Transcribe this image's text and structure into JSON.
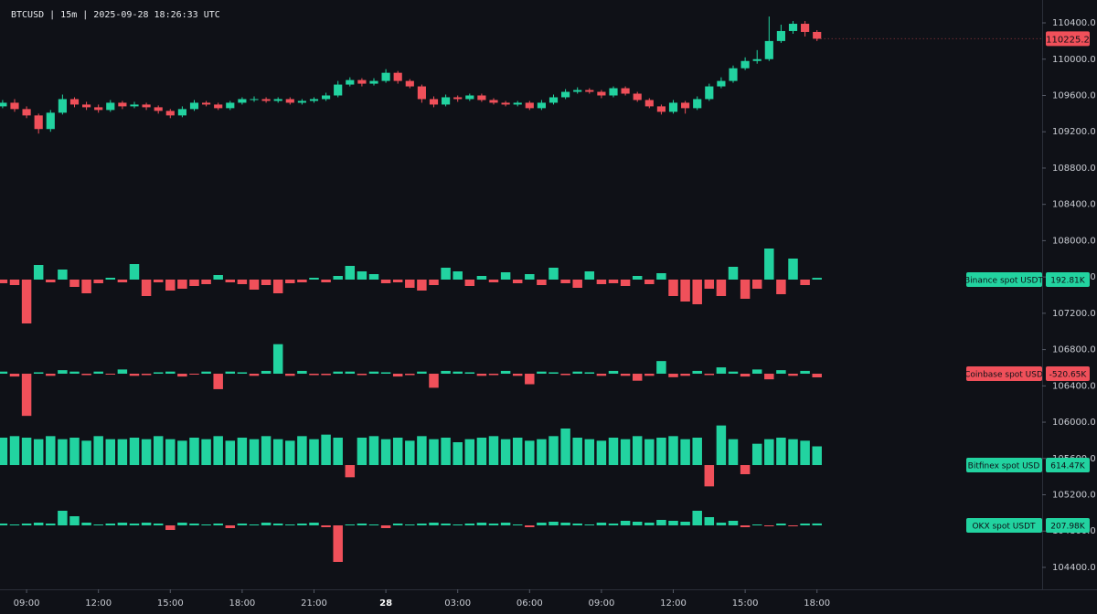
{
  "chart_data": [
    {
      "type": "candlestick",
      "title": "BTCUSD | 15m | 2025-09-28 18:26:33 UTC",
      "up_color": "#22d3a0",
      "down_color": "#f0505a",
      "x": [
        8,
        8.5,
        9,
        9.5,
        10,
        10.5,
        11,
        11.5,
        12,
        12.5,
        13,
        13.5,
        14,
        14.5,
        15,
        15.5,
        16,
        16.5,
        17,
        17.5,
        18,
        18.5,
        19,
        19.5,
        20,
        20.5,
        21,
        21.5,
        22,
        22.5,
        23,
        23.5,
        24,
        24.5,
        25,
        25.5,
        26,
        26.5,
        27,
        27.5,
        28,
        28.5,
        29,
        29.5,
        30,
        30.5,
        31,
        31.5,
        32,
        32.5,
        33,
        33.5,
        34,
        34.5,
        35,
        35.5,
        36,
        36.5,
        37,
        37.5,
        38,
        38.5,
        39,
        39.5,
        40,
        40.5,
        41,
        41.5,
        42
      ],
      "xlim": [
        7.89,
        51.4
      ],
      "xticks": [
        {
          "value": 9,
          "label": "09:00"
        },
        {
          "value": 12,
          "label": "12:00"
        },
        {
          "value": 15,
          "label": "15:00"
        },
        {
          "value": 18,
          "label": "18:00"
        },
        {
          "value": 21,
          "label": "21:00"
        },
        {
          "value": 24,
          "label": "28"
        },
        {
          "value": 27,
          "label": "03:00"
        },
        {
          "value": 30,
          "label": "06:00"
        },
        {
          "value": 33,
          "label": "09:00"
        },
        {
          "value": 36,
          "label": "12:00"
        },
        {
          "value": 39,
          "label": "15:00"
        },
        {
          "value": 42,
          "label": "18:00"
        }
      ],
      "ylim": [
        104158,
        110652
      ],
      "yticks": [
        {
          "value": 110400,
          "label": "110400.0"
        },
        {
          "value": 110000,
          "label": "110000.0"
        },
        {
          "value": 109600,
          "label": "109600.0"
        },
        {
          "value": 109200,
          "label": "109200.0"
        },
        {
          "value": 108800,
          "label": "108800.0"
        },
        {
          "value": 108400,
          "label": "108400.0"
        },
        {
          "value": 108000,
          "label": "108000.0"
        },
        {
          "value": 107600,
          "label": "107600.0"
        },
        {
          "value": 107200,
          "label": "107200.0"
        },
        {
          "value": 106800,
          "label": "106800.0"
        },
        {
          "value": 106400,
          "label": "106400.0"
        },
        {
          "value": 106000,
          "label": "106000.0"
        },
        {
          "value": 105600,
          "label": "105600.0"
        },
        {
          "value": 105200,
          "label": "105200.0"
        },
        {
          "value": 104800,
          "label": "104800.0"
        },
        {
          "value": 104400,
          "label": "104400.0"
        }
      ],
      "open": [
        109480,
        109520,
        109450,
        109380,
        109230,
        109410,
        109560,
        109500,
        109470,
        109440,
        109520,
        109480,
        109500,
        109470,
        109430,
        109380,
        109450,
        109520,
        109500,
        109460,
        109520,
        109560,
        109560,
        109540,
        109560,
        109520,
        109540,
        109560,
        109600,
        109720,
        109770,
        109730,
        109760,
        109850,
        109760,
        109700,
        109560,
        109500,
        109580,
        109560,
        109600,
        109550,
        109520,
        109500,
        109520,
        109460,
        109520,
        109580,
        109640,
        109660,
        109640,
        109600,
        109680,
        109620,
        109550,
        109480,
        109420,
        109520,
        109460,
        109560,
        109700,
        109760,
        109900,
        109980,
        110000,
        110200,
        110310,
        110390,
        110300
      ],
      "high": [
        109550,
        109560,
        109480,
        109400,
        109440,
        109610,
        109580,
        109530,
        109500,
        109550,
        109540,
        109530,
        109520,
        109490,
        109450,
        109480,
        109550,
        109540,
        109520,
        109540,
        109580,
        109590,
        109580,
        109580,
        109580,
        109560,
        109580,
        109630,
        109760,
        109800,
        109790,
        109790,
        109890,
        109870,
        109780,
        109720,
        109590,
        109610,
        109600,
        109620,
        109620,
        109570,
        109540,
        109540,
        109540,
        109550,
        109610,
        109670,
        109690,
        109680,
        109660,
        109700,
        109700,
        109640,
        109570,
        109500,
        109550,
        109540,
        109590,
        109730,
        109800,
        109930,
        110020,
        110100,
        110470,
        110380,
        110420,
        110420,
        110320
      ],
      "low": [
        109460,
        109420,
        109350,
        109180,
        109200,
        109390,
        109470,
        109440,
        109410,
        109420,
        109450,
        109460,
        109440,
        109400,
        109350,
        109360,
        109430,
        109480,
        109440,
        109440,
        109500,
        109530,
        109520,
        109520,
        109500,
        109500,
        109520,
        109540,
        109580,
        109700,
        109700,
        109710,
        109740,
        109730,
        109680,
        109520,
        109470,
        109480,
        109530,
        109540,
        109530,
        109500,
        109480,
        109480,
        109440,
        109440,
        109500,
        109560,
        109620,
        109620,
        109570,
        109580,
        109600,
        109530,
        109460,
        109390,
        109400,
        109400,
        109440,
        109540,
        109680,
        109740,
        109880,
        109950,
        109980,
        110180,
        110280,
        110250,
        110200
      ],
      "close": [
        109520,
        109450,
        109380,
        109230,
        109410,
        109560,
        109500,
        109470,
        109440,
        109520,
        109480,
        109500,
        109470,
        109430,
        109380,
        109450,
        109520,
        109500,
        109460,
        109520,
        109560,
        109560,
        109540,
        109560,
        109520,
        109540,
        109560,
        109600,
        109720,
        109770,
        109730,
        109760,
        109850,
        109760,
        109700,
        109560,
        109500,
        109580,
        109560,
        109600,
        109550,
        109520,
        109500,
        109520,
        109460,
        109520,
        109580,
        109640,
        109660,
        109640,
        109600,
        109680,
        109620,
        109550,
        109480,
        109420,
        109520,
        109460,
        109560,
        109700,
        109760,
        109900,
        109980,
        110000,
        110200,
        110310,
        110390,
        110300,
        110225.2
      ]
    },
    {
      "type": "bar",
      "name": "Binance spot USDT",
      "ylim": [
        -5000,
        5000
      ],
      "value_label": "192.81K",
      "values": [
        -400,
        -600,
        -4800,
        1600,
        -300,
        1100,
        -800,
        -1500,
        -400,
        200,
        -300,
        1700,
        -1800,
        -300,
        -1200,
        -1000,
        -700,
        -500,
        500,
        -300,
        -500,
        -1100,
        -600,
        -1500,
        -400,
        -300,
        200,
        -300,
        400,
        1500,
        900,
        600,
        -400,
        -300,
        -900,
        -1200,
        -600,
        1300,
        900,
        -700,
        400,
        -300,
        800,
        -400,
        600,
        -600,
        1300,
        -400,
        -900,
        900,
        -500,
        -400,
        -700,
        400,
        -500,
        700,
        -1800,
        -2400,
        -2700,
        -1000,
        -1800,
        1400,
        -2100,
        -1000,
        3400,
        -1600,
        2300,
        -600,
        192.81
      ]
    },
    {
      "type": "bar",
      "name": "Coinbase spot USD",
      "ylim": [
        -6500,
        6500
      ],
      "value_label": "-520.65K",
      "values": [
        300,
        -400,
        -6000,
        200,
        -300,
        500,
        300,
        -200,
        300,
        -100,
        600,
        -300,
        -200,
        200,
        300,
        -400,
        -100,
        300,
        -2200,
        300,
        200,
        -300,
        400,
        4200,
        -300,
        400,
        -200,
        -200,
        300,
        300,
        -200,
        300,
        200,
        -400,
        -200,
        300,
        -2000,
        400,
        300,
        200,
        -300,
        -200,
        400,
        -300,
        -1500,
        300,
        200,
        -200,
        300,
        200,
        -300,
        400,
        -300,
        -1000,
        -300,
        1800,
        -500,
        -300,
        400,
        -200,
        900,
        300,
        -400,
        600,
        -800,
        500,
        -300,
        400,
        -520.65
      ]
    },
    {
      "type": "bar",
      "name": "Bitfinex spot USD",
      "ylim": [
        -1500,
        1500
      ],
      "value_label": "614.47K",
      "values": [
        900,
        950,
        900,
        850,
        950,
        850,
        900,
        800,
        950,
        850,
        850,
        900,
        850,
        950,
        850,
        800,
        900,
        850,
        950,
        800,
        900,
        850,
        950,
        850,
        800,
        950,
        850,
        1000,
        900,
        -400,
        900,
        950,
        850,
        900,
        800,
        950,
        850,
        900,
        750,
        850,
        900,
        950,
        850,
        900,
        800,
        850,
        950,
        1200,
        900,
        850,
        800,
        900,
        850,
        950,
        850,
        900,
        950,
        850,
        900,
        -700,
        1300,
        850,
        -300,
        700,
        850,
        900,
        850,
        800,
        614.47
      ]
    },
    {
      "type": "bar",
      "name": "OKX spot USDT",
      "ylim": [
        -5000,
        5000
      ],
      "value_label": "207.98K",
      "values": [
        200,
        100,
        200,
        300,
        200,
        1600,
        1000,
        300,
        100,
        200,
        300,
        200,
        300,
        200,
        -500,
        300,
        200,
        100,
        200,
        -300,
        200,
        100,
        300,
        200,
        100,
        200,
        300,
        -200,
        -4000,
        100,
        200,
        100,
        -300,
        200,
        100,
        200,
        300,
        200,
        100,
        200,
        300,
        200,
        300,
        100,
        -200,
        300,
        400,
        300,
        200,
        100,
        300,
        200,
        500,
        400,
        300,
        600,
        500,
        400,
        1600,
        900,
        300,
        500,
        -200,
        100,
        -100,
        200,
        -100,
        200,
        207.98
      ]
    }
  ]
}
